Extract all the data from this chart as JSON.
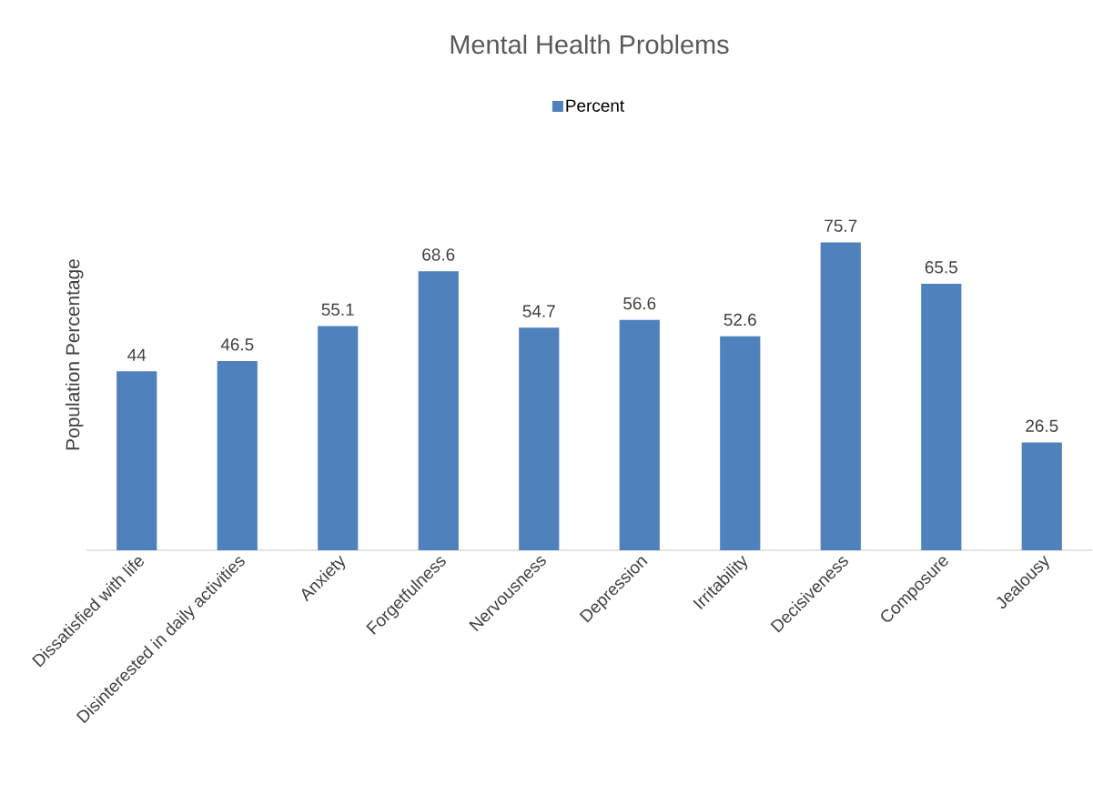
{
  "chart_data": {
    "type": "bar",
    "title": "Mental Health Problems",
    "ylabel": "Population Percentage",
    "categories": [
      "Dissatisfied with life",
      "Disinterested in daily activities",
      "Anxiety",
      "Forgetfulness",
      "Nervousness",
      "Depression",
      "Irritability",
      "Decisiveness",
      "Composure",
      "Jealousy"
    ],
    "series": [
      {
        "name": "Percent",
        "color": "#4f81bd",
        "values": [
          44,
          46.5,
          55.1,
          68.6,
          54.7,
          56.6,
          52.6,
          75.7,
          65.5,
          26.5
        ]
      }
    ],
    "data_labels": true,
    "legend": "top"
  }
}
